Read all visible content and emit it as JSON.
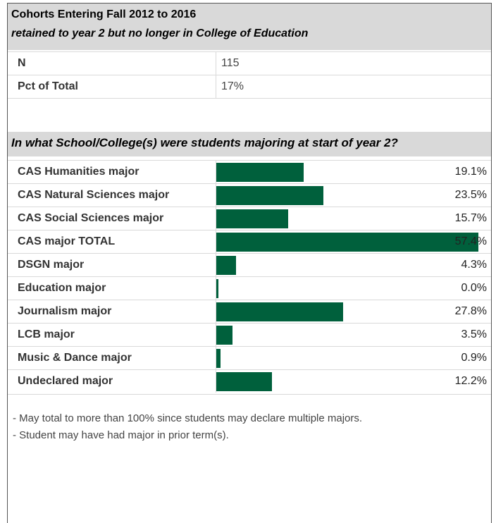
{
  "header": {
    "title": "Cohorts Entering Fall 2012 to 2016",
    "subtitle": "retained to year 2 but no longer in College of Education"
  },
  "stats": [
    {
      "label": "N",
      "value": "115"
    },
    {
      "label": "Pct of Total",
      "value": "17%"
    }
  ],
  "section_title": "In what School/College(s) were students majoring at start of year 2?",
  "chart_data": {
    "type": "bar",
    "orientation": "horizontal",
    "categories": [
      "CAS Humanities major",
      "CAS Natural Sciences major",
      "CAS Social Sciences major",
      "CAS major TOTAL",
      "DSGN major",
      "Education major",
      "Journalism major",
      "LCB major",
      "Music & Dance major",
      "Undeclared major"
    ],
    "values": [
      19.1,
      23.5,
      15.7,
      57.4,
      4.3,
      0.0,
      27.8,
      3.5,
      0.9,
      12.2
    ],
    "value_labels": [
      "19.1%",
      "23.5%",
      "15.7%",
      "57.4%",
      "4.3%",
      "0.0%",
      "27.8%",
      "3.5%",
      "0.9%",
      "12.2%"
    ],
    "xlim": [
      0,
      57.4
    ],
    "bar_color": "#00603c"
  },
  "notes": [
    "- May total to more than 100% since students may declare multiple majors.",
    "- Student may have had major in prior term(s)."
  ]
}
